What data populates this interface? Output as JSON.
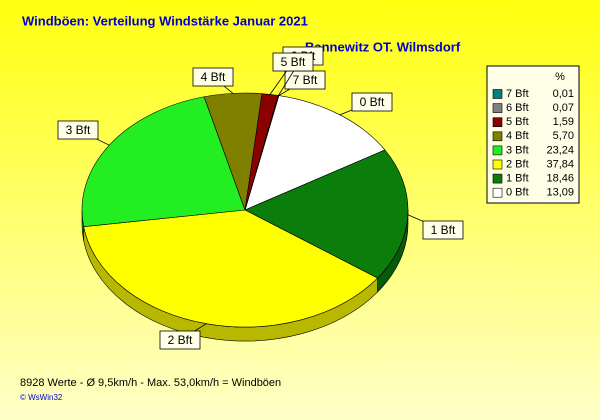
{
  "chart_data": {
    "type": "pie",
    "title": "Windböen: Verteilung Windstärke  Januar 2021",
    "subtitle": "Bannewitz OT. Wilmsdorf",
    "legend_header": "%",
    "categories": [
      "0 Bft",
      "1 Bft",
      "2 Bft",
      "3 Bft",
      "4 Bft",
      "5 Bft",
      "6 Bft",
      "7 Bft"
    ],
    "values": [
      13.09,
      18.46,
      37.84,
      23.24,
      5.7,
      1.59,
      0.07,
      0.01
    ],
    "value_labels": [
      "13,09",
      "18,46",
      "37,84",
      "23,24",
      "5,70",
      "1,59",
      "0,07",
      "0,01"
    ],
    "colors": [
      "#ffffff",
      "#0a7d0a",
      "#ffff00",
      "#22ee22",
      "#7f7f00",
      "#8b0000",
      "#808080",
      "#008080"
    ],
    "legend": "right",
    "note": "8928 Werte   -   Ø 9,5km/h  -  Max. 53,0km/h = Windböen",
    "credit": "© WsWin32"
  }
}
